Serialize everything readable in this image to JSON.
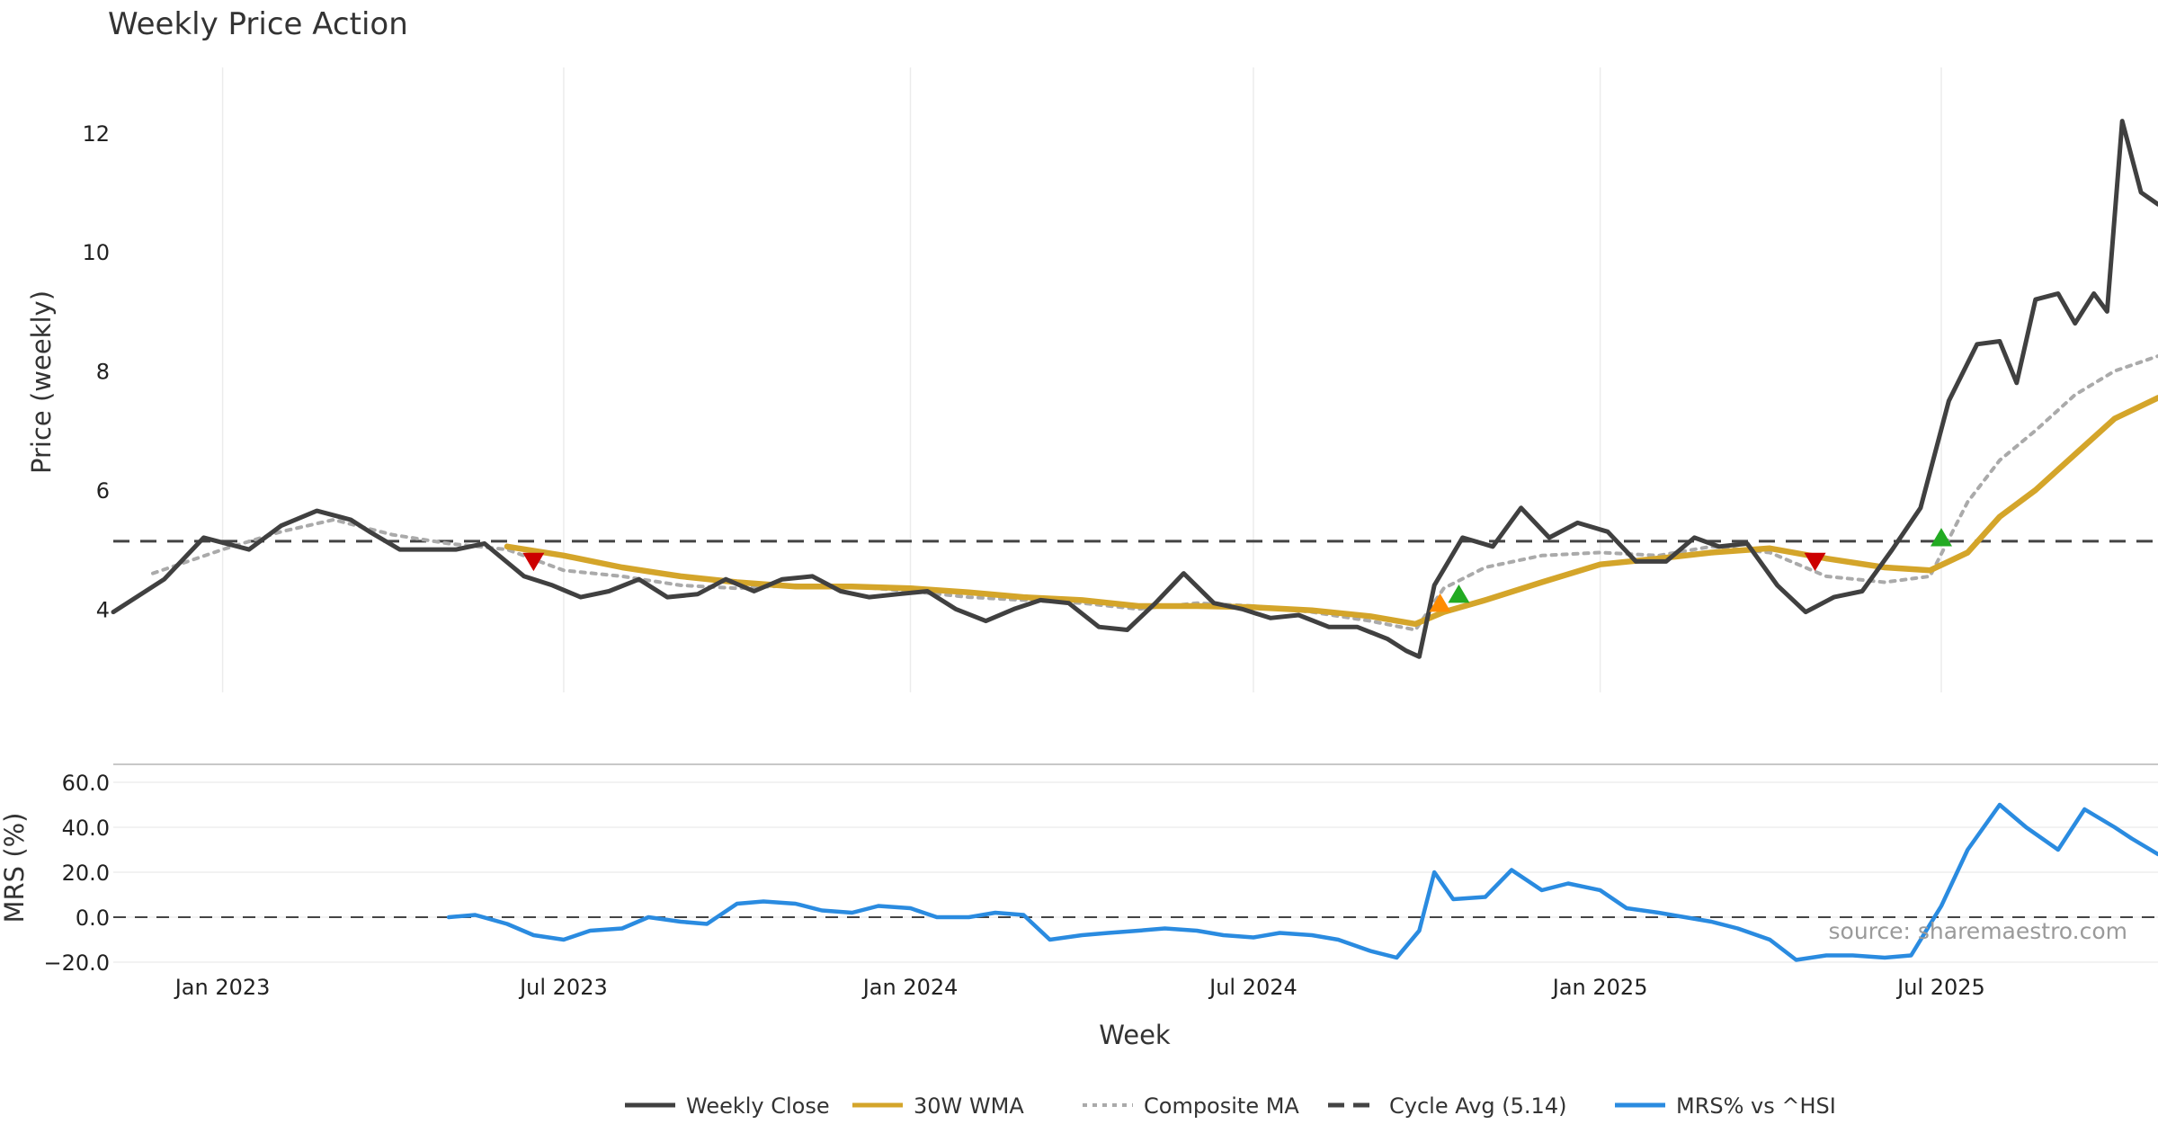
{
  "chart_data": {
    "type": "line",
    "title": "Weekly Price Action",
    "xlabel": "Week",
    "x_ticks": [
      "Jan 2023",
      "Jul 2023",
      "Jan 2024",
      "Jul 2024",
      "Jan 2025",
      "Jul 2025"
    ],
    "x_tick_dates": [
      "2023-01-01",
      "2023-07-01",
      "2024-01-01",
      "2024-07-01",
      "2025-01-01",
      "2025-07-01"
    ],
    "x_range": [
      "2022-11-04",
      "2025-10-24"
    ],
    "grid": true,
    "legend_position": "bottom-center",
    "price_panel": {
      "ylabel": "Price (weekly)",
      "ylim": [
        2.6,
        13.1
      ],
      "y_ticks": [
        "4",
        "6",
        "8",
        "10",
        "12"
      ],
      "y_tick_values": [
        4,
        6,
        8,
        10,
        12
      ],
      "cycle_avg": 5.14,
      "series": [
        {
          "name": "Weekly Close",
          "color": "#404040",
          "style": "solid",
          "x": [
            "2022-11-04",
            "2022-12-01",
            "2022-12-22",
            "2023-01-15",
            "2023-02-01",
            "2023-02-20",
            "2023-03-10",
            "2023-03-20",
            "2023-04-05",
            "2023-04-20",
            "2023-05-05",
            "2023-05-20",
            "2023-06-10",
            "2023-06-25",
            "2023-07-10",
            "2023-07-25",
            "2023-08-10",
            "2023-08-25",
            "2023-09-10",
            "2023-09-25",
            "2023-10-10",
            "2023-10-25",
            "2023-11-10",
            "2023-11-25",
            "2023-12-10",
            "2023-12-25",
            "2024-01-10",
            "2024-01-25",
            "2024-02-10",
            "2024-02-25",
            "2024-03-10",
            "2024-03-25",
            "2024-04-10",
            "2024-04-25",
            "2024-05-10",
            "2024-05-25",
            "2024-06-10",
            "2024-06-25",
            "2024-07-10",
            "2024-07-25",
            "2024-08-10",
            "2024-08-25",
            "2024-09-10",
            "2024-09-20",
            "2024-09-27",
            "2024-10-05",
            "2024-10-20",
            "2024-11-05",
            "2024-11-20",
            "2024-12-05",
            "2024-12-20",
            "2025-01-05",
            "2025-01-20",
            "2025-02-05",
            "2025-02-20",
            "2025-03-05",
            "2025-03-20",
            "2025-04-05",
            "2025-04-20",
            "2025-05-05",
            "2025-05-20",
            "2025-06-05",
            "2025-06-20",
            "2025-07-05",
            "2025-07-20",
            "2025-08-01",
            "2025-08-10",
            "2025-08-20",
            "2025-09-01",
            "2025-09-10",
            "2025-09-20",
            "2025-09-27",
            "2025-10-05",
            "2025-10-15",
            "2025-10-24"
          ],
          "y": [
            3.95,
            4.5,
            5.2,
            5.0,
            5.4,
            5.65,
            5.5,
            5.3,
            5.0,
            5.0,
            5.0,
            5.1,
            4.55,
            4.4,
            4.2,
            4.3,
            4.5,
            4.2,
            4.25,
            4.5,
            4.3,
            4.5,
            4.55,
            4.3,
            4.2,
            4.25,
            4.3,
            4.0,
            3.8,
            4.0,
            4.15,
            4.1,
            3.7,
            3.65,
            4.1,
            4.6,
            4.1,
            4.0,
            3.85,
            3.9,
            3.7,
            3.7,
            3.5,
            3.3,
            3.2,
            4.4,
            5.2,
            5.05,
            5.7,
            5.2,
            5.45,
            5.3,
            4.8,
            4.8,
            5.2,
            5.05,
            5.1,
            4.4,
            3.95,
            4.2,
            4.3,
            5.0,
            5.7,
            7.5,
            8.45,
            8.5,
            7.8,
            9.2,
            9.3,
            8.8,
            9.3,
            9.0,
            12.2,
            11.0,
            10.8
          ]
        },
        {
          "name": "30W WMA",
          "color": "#d4a52a",
          "style": "solid",
          "x": [
            "2023-06-01",
            "2023-07-01",
            "2023-08-01",
            "2023-09-01",
            "2023-10-01",
            "2023-11-01",
            "2023-12-01",
            "2024-01-01",
            "2024-02-01",
            "2024-03-01",
            "2024-04-01",
            "2024-05-01",
            "2024-06-01",
            "2024-07-01",
            "2024-08-01",
            "2024-09-01",
            "2024-09-25",
            "2024-10-10",
            "2024-11-01",
            "2024-12-01",
            "2025-01-01",
            "2025-02-01",
            "2025-03-01",
            "2025-04-01",
            "2025-05-01",
            "2025-06-01",
            "2025-06-25",
            "2025-07-15",
            "2025-08-01",
            "2025-08-20",
            "2025-09-10",
            "2025-10-01",
            "2025-10-24"
          ],
          "y": [
            5.05,
            4.9,
            4.7,
            4.55,
            4.45,
            4.38,
            4.38,
            4.35,
            4.28,
            4.2,
            4.15,
            4.05,
            4.05,
            4.03,
            3.98,
            3.88,
            3.75,
            3.95,
            4.15,
            4.45,
            4.75,
            4.85,
            4.95,
            5.02,
            4.85,
            4.7,
            4.65,
            4.95,
            5.55,
            6.0,
            6.6,
            7.2,
            7.55
          ]
        },
        {
          "name": "Composite MA",
          "color": "#aaaaaa",
          "style": "dotted",
          "x": [
            "2022-11-25",
            "2023-01-01",
            "2023-02-01",
            "2023-03-01",
            "2023-04-01",
            "2023-05-01",
            "2023-06-01",
            "2023-07-01",
            "2023-08-01",
            "2023-09-01",
            "2023-10-01",
            "2023-11-01",
            "2023-12-01",
            "2024-01-01",
            "2024-02-01",
            "2024-03-01",
            "2024-04-01",
            "2024-05-01",
            "2024-06-01",
            "2024-07-01",
            "2024-08-01",
            "2024-09-01",
            "2024-09-25",
            "2024-10-10",
            "2024-11-01",
            "2024-12-01",
            "2025-01-01",
            "2025-02-01",
            "2025-03-01",
            "2025-04-01",
            "2025-05-01",
            "2025-06-01",
            "2025-06-25",
            "2025-07-15",
            "2025-08-01",
            "2025-08-20",
            "2025-09-10",
            "2025-10-01",
            "2025-10-24"
          ],
          "y": [
            4.6,
            5.0,
            5.3,
            5.5,
            5.25,
            5.1,
            5.0,
            4.65,
            4.55,
            4.4,
            4.35,
            4.4,
            4.38,
            4.3,
            4.2,
            4.15,
            4.1,
            4.0,
            4.1,
            4.05,
            3.95,
            3.8,
            3.65,
            4.35,
            4.7,
            4.9,
            4.95,
            4.9,
            5.05,
            4.95,
            4.55,
            4.45,
            4.55,
            5.8,
            6.5,
            7.0,
            7.6,
            8.0,
            8.25
          ]
        }
      ],
      "markers": [
        {
          "date": "2023-06-15",
          "value": 4.8,
          "shape": "triangle-down",
          "color": "#cc0000"
        },
        {
          "date": "2024-10-08",
          "value": 4.1,
          "shape": "triangle-up",
          "color": "#ff8c00"
        },
        {
          "date": "2024-10-18",
          "value": 4.25,
          "shape": "triangle-up",
          "color": "#22aa22"
        },
        {
          "date": "2025-04-25",
          "value": 4.8,
          "shape": "triangle-down",
          "color": "#cc0000"
        },
        {
          "date": "2025-07-01",
          "value": 5.2,
          "shape": "triangle-up",
          "color": "#22aa22"
        }
      ]
    },
    "mrs_panel": {
      "ylabel": "MRS (%)",
      "ylim": [
        -24,
        68
      ],
      "y_ticks": [
        "60.0",
        "40.0",
        "20.0",
        "0.0",
        "−20.0"
      ],
      "y_tick_values": [
        60,
        40,
        20,
        0,
        -20
      ],
      "series": [
        {
          "name": "MRS% vs ^HSI",
          "color": "#2a8be0",
          "style": "solid",
          "x": [
            "2023-05-01",
            "2023-05-15",
            "2023-06-01",
            "2023-06-15",
            "2023-07-01",
            "2023-07-15",
            "2023-08-01",
            "2023-08-15",
            "2023-09-01",
            "2023-09-15",
            "2023-10-01",
            "2023-10-15",
            "2023-11-01",
            "2023-11-15",
            "2023-12-01",
            "2023-12-15",
            "2024-01-01",
            "2024-01-15",
            "2024-02-01",
            "2024-02-15",
            "2024-03-01",
            "2024-03-15",
            "2024-04-01",
            "2024-04-15",
            "2024-05-01",
            "2024-05-15",
            "2024-06-01",
            "2024-06-15",
            "2024-07-01",
            "2024-07-15",
            "2024-08-01",
            "2024-08-15",
            "2024-09-01",
            "2024-09-15",
            "2024-09-27",
            "2024-10-05",
            "2024-10-15",
            "2024-11-01",
            "2024-11-15",
            "2024-12-01",
            "2024-12-15",
            "2025-01-01",
            "2025-01-15",
            "2025-02-01",
            "2025-02-15",
            "2025-03-01",
            "2025-03-15",
            "2025-04-01",
            "2025-04-15",
            "2025-05-01",
            "2025-05-15",
            "2025-06-01",
            "2025-06-15",
            "2025-07-01",
            "2025-07-15",
            "2025-08-01",
            "2025-08-15",
            "2025-09-01",
            "2025-09-15",
            "2025-10-01",
            "2025-10-10",
            "2025-10-24"
          ],
          "y": [
            0,
            1,
            -3,
            -8,
            -10,
            -6,
            -5,
            0,
            -2,
            -3,
            6,
            7,
            6,
            3,
            2,
            5,
            4,
            0,
            0,
            2,
            1,
            -10,
            -8,
            -7,
            -6,
            -5,
            -6,
            -8,
            -9,
            -7,
            -8,
            -10,
            -15,
            -18,
            -6,
            20,
            8,
            9,
            21,
            12,
            15,
            12,
            4,
            2,
            0,
            -2,
            -5,
            -10,
            -19,
            -17,
            -17,
            -18,
            -17,
            5,
            30,
            50,
            40,
            30,
            48,
            40,
            35,
            28
          ]
        }
      ]
    }
  },
  "legend": {
    "items": [
      {
        "label": "Weekly Close",
        "color": "#404040",
        "style": "solid"
      },
      {
        "label": "30W WMA",
        "color": "#d4a52a",
        "style": "solid"
      },
      {
        "label": "Composite MA",
        "color": "#aaaaaa",
        "style": "dotted"
      },
      {
        "label": "Cycle Avg (5.14)",
        "color": "#444444",
        "style": "dashed"
      },
      {
        "label": "MRS% vs ^HSI",
        "color": "#2a8be0",
        "style": "solid"
      }
    ]
  },
  "source": "source: sharemaestro.com"
}
